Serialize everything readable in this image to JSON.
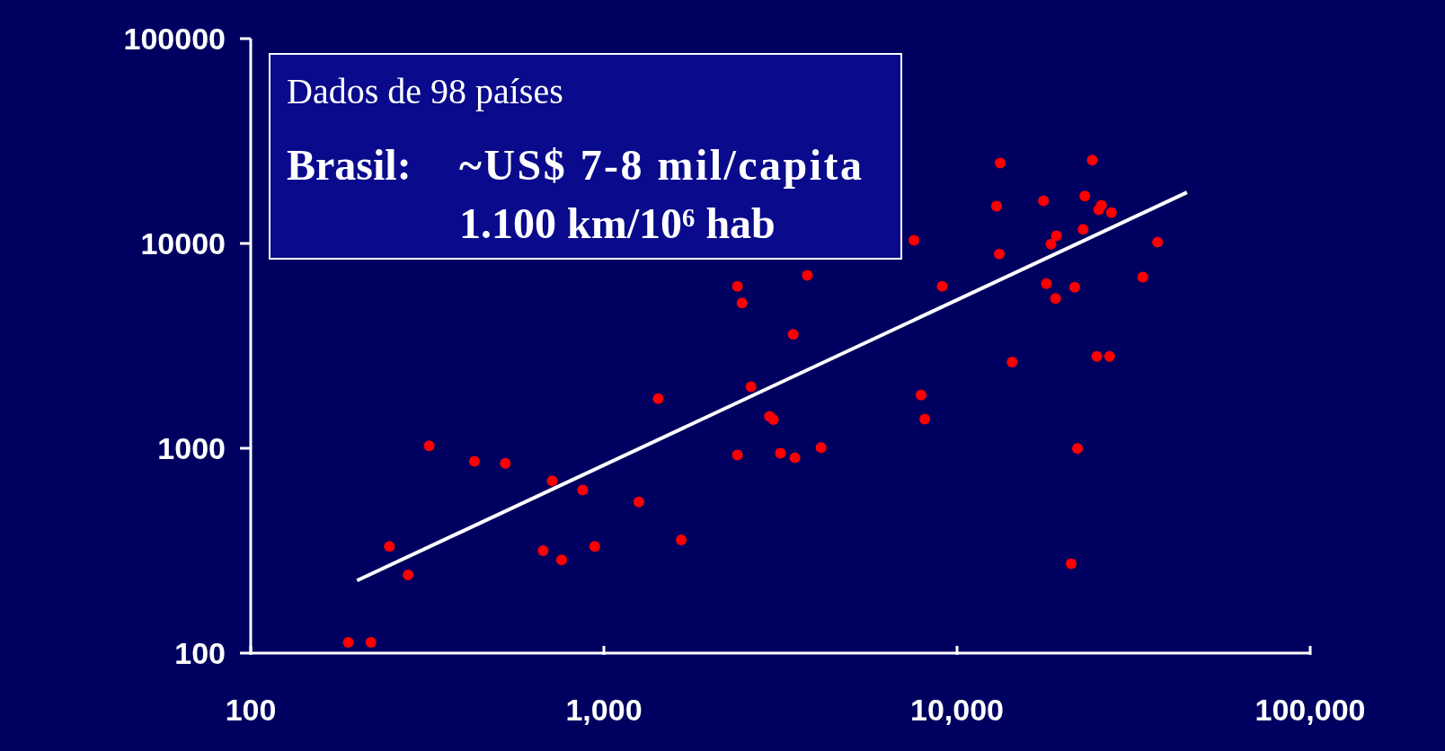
{
  "chart_data": {
    "type": "scatter",
    "log": "xy",
    "xlim": [
      100,
      100000
    ],
    "ylim": [
      100,
      100000
    ],
    "xticks": [
      {
        "value": 100,
        "label": "100"
      },
      {
        "value": 1000,
        "label": "1,000"
      },
      {
        "value": 10000,
        "label": "10,000"
      },
      {
        "value": 100000,
        "label": "100,000"
      }
    ],
    "yticks": [
      100,
      1000,
      10000,
      100000
    ],
    "grid": false,
    "marker": "circle",
    "annotations": [
      "Dados de 98 países",
      "Brasil:",
      "~US$ 7-8 mil/capita",
      "1.100 km/10⁶ hab"
    ],
    "series": [
      {
        "color": "#ff0000",
        "x": [
          189,
          219,
          247,
          279,
          320,
          430,
          526,
          673,
          714,
          759,
          871,
          942,
          1256,
          1425,
          1656,
          2389,
          2462,
          2389,
          2611,
          2944,
          3020,
          3162,
          3436,
          3475,
          3767,
          4121,
          7551,
          7907,
          8106,
          9078,
          12940,
          13250,
          13170,
          14320,
          17570,
          17900,
          18450,
          19110,
          19010,
          21040,
          21540,
          21930,
          22750,
          23010,
          24150,
          24890,
          25180,
          25640,
          27040,
          27360,
          33570,
          36960
        ],
        "values": [
          113,
          113,
          332,
          241,
          1028,
          863,
          845,
          316,
          693,
          285,
          625,
          332,
          547,
          1746,
          357,
          6170,
          5120,
          927,
          1995,
          1432,
          1380,
          946,
          3597,
          899,
          6982,
          1007,
          10350,
          1820,
          1390,
          6170,
          15210,
          24720,
          8870,
          2636,
          16170,
          6370,
          9930,
          10910,
          5390,
          273,
          6110,
          998,
          11720,
          17020,
          25530,
          2811,
          14590,
          15350,
          2811,
          14130,
          6840,
          10140
        ]
      },
      {
        "type": "line",
        "color": "#ffffff",
        "marker": "none",
        "line_style": "solid",
        "x": [
          200,
          44780
        ],
        "values": [
          226,
          17750
        ]
      }
    ]
  }
}
